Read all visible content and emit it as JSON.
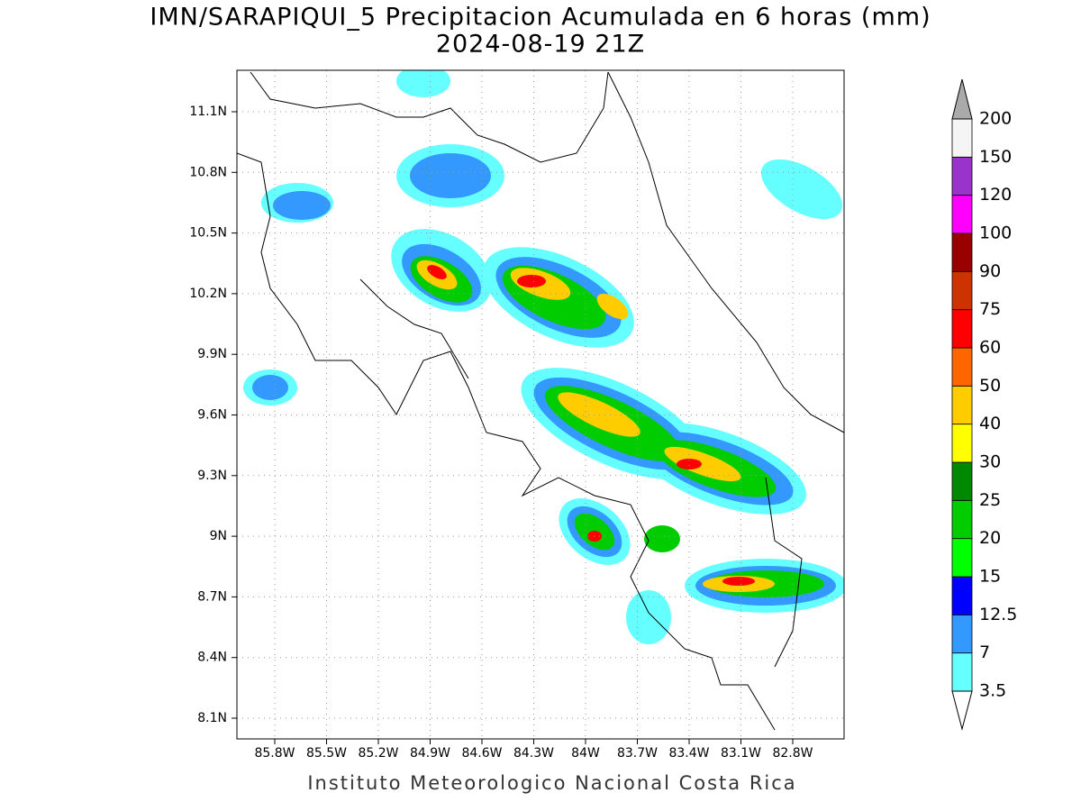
{
  "header": {
    "title": "IMN/SARAPIQUI_5 Precipitacion Acumulada en 6 horas (mm)",
    "subtitle": "2024-08-19 21Z"
  },
  "map": {
    "lon_ticks": [
      "85.8W",
      "85.5W",
      "85.2W",
      "84.9W",
      "84.6W",
      "84.3W",
      "84W",
      "83.7W",
      "83.4W",
      "83.1W",
      "82.8W"
    ],
    "lat_ticks": [
      "11.1N",
      "10.8N",
      "10.5N",
      "10.2N",
      "9.9N",
      "9.6N",
      "9.3N",
      "9N",
      "8.7N",
      "8.4N",
      "8.1N"
    ]
  },
  "colorbar": {
    "levels": [
      3.5,
      7,
      12.5,
      15,
      20,
      25,
      30,
      40,
      50,
      60,
      75,
      90,
      100,
      120,
      150,
      200
    ],
    "colors": [
      "#ffffff",
      "#66ffff",
      "#3399ff",
      "#0000ff",
      "#00ff00",
      "#00cc00",
      "#008800",
      "#ffff00",
      "#ffcc00",
      "#ff6600",
      "#ff0000",
      "#cc3300",
      "#990000",
      "#ff00ff",
      "#9933cc",
      "#f5f5f5",
      "#aaaaaa"
    ]
  },
  "footer": "Instituto Meteorologico Nacional Costa Rica"
}
